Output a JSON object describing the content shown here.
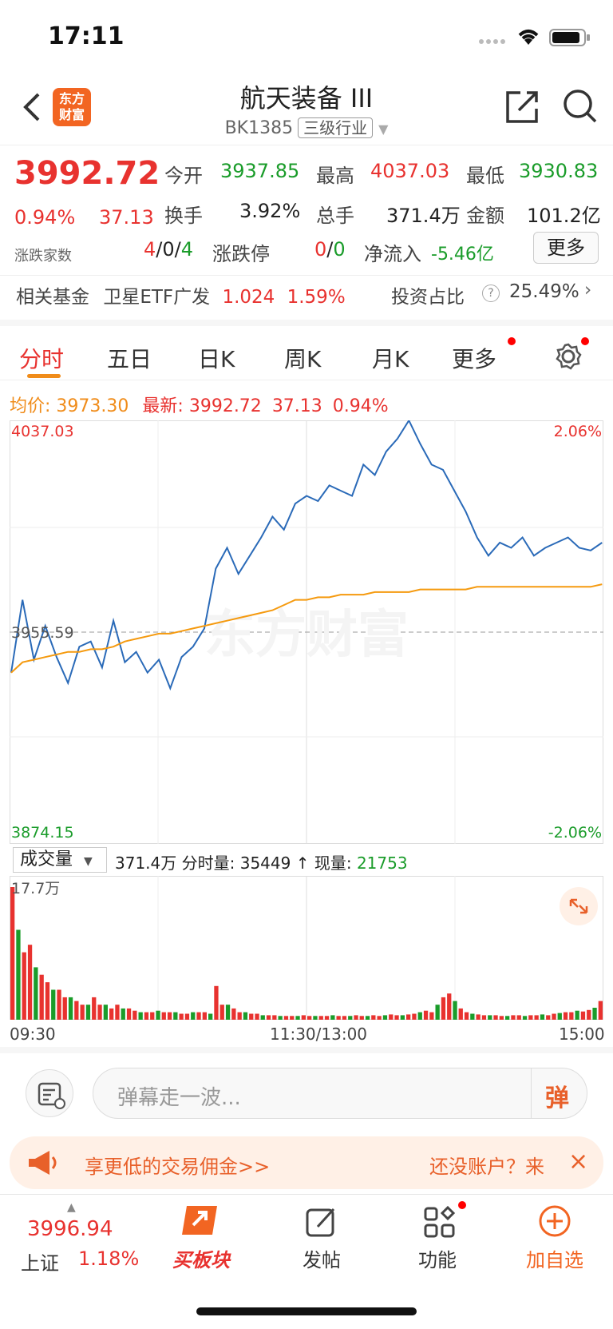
{
  "status": {
    "time": "17:11"
  },
  "header": {
    "title": "航天装备 III",
    "code": "BK1385",
    "tag": "三级行业",
    "logo_text": "东方财富"
  },
  "quote": {
    "price": "3992.72",
    "pct": "0.94%",
    "change": "37.13",
    "open_label": "今开",
    "open": "3937.85",
    "high_label": "最高",
    "high": "4037.03",
    "low_label": "最低",
    "low": "3930.83",
    "turnover_label": "换手",
    "turnover": "3.92%",
    "vol_label": "总手",
    "vol": "371.4万",
    "amount_label": "金额",
    "amount": "101.2亿",
    "updown_label": "涨跌家数",
    "up": "4",
    "flat": "0",
    "down": "4",
    "limit_label": "涨跌停",
    "limit_up": "0",
    "limit_down": "0",
    "netflow_label": "净流入",
    "netflow": "-5.46亿",
    "more_label": "更多"
  },
  "fund": {
    "label": "相关基金",
    "name": "卫星ETF广发",
    "price": "1.024",
    "pct": "1.59%",
    "weight_label": "投资占比",
    "weight": "25.49%"
  },
  "tabs": [
    "分时",
    "五日",
    "日K",
    "周K",
    "月K",
    "更多"
  ],
  "chart_info": {
    "avg_label": "均价:",
    "avg": "3973.30",
    "latest_label": "最新:",
    "latest": "3992.72",
    "latest_change": "37.13",
    "latest_pct": "0.94%"
  },
  "chart_data": {
    "type": "line",
    "price_top": "4037.03",
    "price_bottom": "3874.15",
    "pct_top": "2.06%",
    "pct_bottom": "-2.06%",
    "prev_close": "3955.59",
    "watermark": "东方财富",
    "ylim": [
      3874.15,
      4037.03
    ],
    "x_labels": [
      "09:30",
      "11:30/13:00",
      "15:00"
    ],
    "series": [
      {
        "values": [
          3940,
          3968,
          3945,
          3958,
          3946,
          3936,
          3950,
          3952,
          3942,
          3960,
          3944,
          3948,
          3940,
          3945,
          3934,
          3946,
          3950,
          3957,
          3980,
          3988,
          3978,
          3985,
          3992,
          4000,
          3995,
          4005,
          4008,
          4006,
          4012,
          4010,
          4008,
          4020,
          4016,
          4025,
          4030,
          4037,
          4028,
          4020,
          4018,
          4010,
          4002,
          3992,
          3985,
          3990,
          3988,
          3992,
          3985,
          3988,
          3990,
          3992,
          3988,
          3987,
          3990
        ],
        "color": "#2a6ab8"
      },
      {
        "values": [
          3940,
          3944,
          3945,
          3946,
          3947,
          3948,
          3948,
          3949,
          3949,
          3950,
          3952,
          3953,
          3954,
          3955,
          3955,
          3956,
          3957,
          3958,
          3959,
          3960,
          3961,
          3962,
          3963,
          3964,
          3966,
          3968,
          3968,
          3969,
          3969,
          3970,
          3970,
          3970,
          3971,
          3971,
          3971,
          3971,
          3972,
          3972,
          3972,
          3972,
          3972,
          3973,
          3973,
          3973,
          3973,
          3973,
          3973,
          3973,
          3973,
          3973,
          3973,
          3973,
          3974
        ],
        "color": "#f59a0f"
      }
    ]
  },
  "volume": {
    "select": "成交量",
    "total": "371.4万",
    "split_label": "分时量:",
    "split": "35449",
    "now_label": "现量:",
    "now": "21753",
    "max": "17.7万",
    "bars": [
      17.7,
      12,
      9,
      10,
      7,
      6,
      5,
      4,
      4,
      3,
      3,
      2.5,
      2,
      2,
      3,
      2,
      2,
      1.5,
      2,
      1.5,
      1.5,
      1.2,
      1,
      1,
      1,
      1.2,
      1,
      1,
      1,
      0.8,
      0.8,
      1,
      1,
      1,
      0.8,
      4.5,
      2,
      2,
      1.5,
      1,
      1,
      0.8,
      0.8,
      0.6,
      0.6,
      0.6,
      0.5,
      0.5,
      0.5,
      0.5,
      0.6,
      0.5,
      0.5,
      0.5,
      0.5,
      0.6,
      0.5,
      0.5,
      0.5,
      0.6,
      0.5,
      0.5,
      0.6,
      0.5,
      0.6,
      0.7,
      0.6,
      0.6,
      0.7,
      0.8,
      1,
      1.2,
      1,
      2,
      3,
      3.5,
      2.5,
      1.5,
      1,
      0.8,
      0.7,
      0.6,
      0.6,
      0.6,
      0.5,
      0.5,
      0.6,
      0.6,
      0.5,
      0.6,
      0.6,
      0.7,
      0.6,
      0.8,
      0.9,
      1,
      1,
      1.2,
      1.1,
      1.3,
      1.6,
      2.5
    ]
  },
  "danmu": {
    "placeholder": "弹幕走一波...",
    "button": "弹"
  },
  "promo": {
    "left": "享更低的交易佣金>>",
    "right": "还没账户？来"
  },
  "nav": {
    "index_value": "3996.94",
    "index_name": "上证",
    "index_pct": "1.18%",
    "buy_label": "买板块",
    "post_label": "发帖",
    "func_label": "功能",
    "add_label": "加自选"
  }
}
